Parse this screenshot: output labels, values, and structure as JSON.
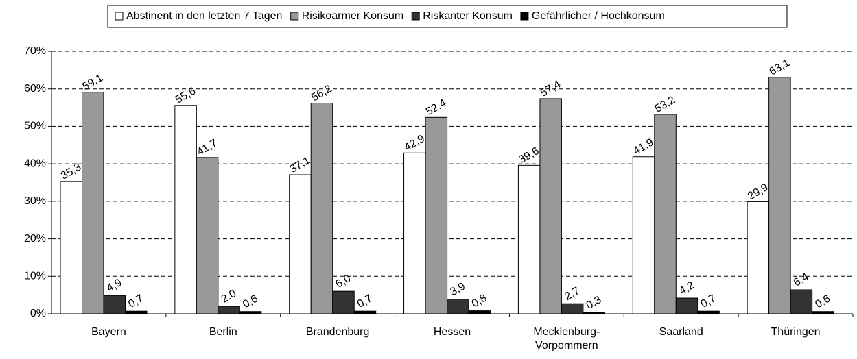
{
  "chart_data": {
    "type": "bar",
    "categories": [
      "Bayern",
      "Berlin",
      "Brandenburg",
      "Hessen",
      "Mecklenburg-Vorpommern",
      "Saarland",
      "Thüringen"
    ],
    "series": [
      {
        "name": "Abstinent in den letzten 7 Tagen",
        "color": "#ffffff",
        "values": [
          35.3,
          55.6,
          37.1,
          42.9,
          39.6,
          41.9,
          29.9
        ],
        "value_labels": [
          "35,3",
          "55,6",
          "37,1",
          "42,9",
          "39,6",
          "41,9",
          "29,9"
        ]
      },
      {
        "name": "Risikoarmer Konsum",
        "color": "#999999",
        "values": [
          59.1,
          41.7,
          56.2,
          52.4,
          57.4,
          53.2,
          63.1
        ],
        "value_labels": [
          "59,1",
          "41,7",
          "56,2",
          "52,4",
          "57,4",
          "53,2",
          "63,1"
        ]
      },
      {
        "name": "Riskanter Konsum",
        "color": "#333333",
        "values": [
          4.9,
          2.0,
          6.0,
          3.9,
          2.7,
          4.2,
          6.4
        ],
        "value_labels": [
          "4,9",
          "2,0",
          "6,0",
          "3,9",
          "2,7",
          "4,2",
          "6,4"
        ]
      },
      {
        "name": "Gefährlicher / Hochkonsum",
        "color": "#000000",
        "values": [
          0.7,
          0.6,
          0.7,
          0.8,
          0.3,
          0.7,
          0.6
        ],
        "value_labels": [
          "0,7",
          "0,6",
          "0,7",
          "0,8",
          "0,3",
          "0,7",
          "0,6"
        ]
      }
    ],
    "ylim": [
      0,
      70
    ],
    "yticks": [
      {
        "value": 0,
        "label": "0%"
      },
      {
        "value": 10,
        "label": "10%"
      },
      {
        "value": 20,
        "label": "20%"
      },
      {
        "value": 30,
        "label": "30%"
      },
      {
        "value": 40,
        "label": "40%"
      },
      {
        "value": 50,
        "label": "50%"
      },
      {
        "value": 60,
        "label": "60%"
      },
      {
        "value": 70,
        "label": "70%"
      }
    ],
    "grid": true,
    "legend": "top"
  }
}
